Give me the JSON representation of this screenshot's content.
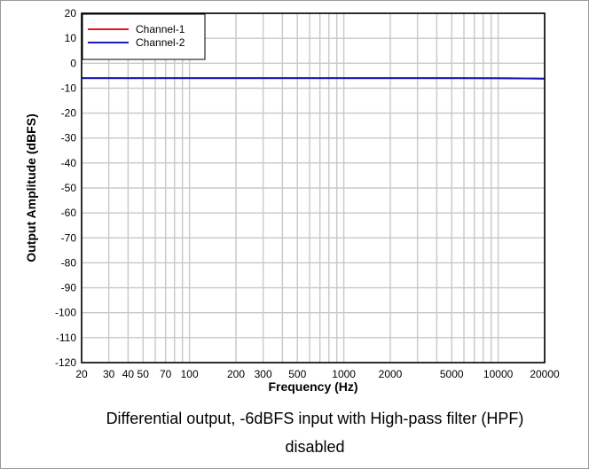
{
  "chart_data": {
    "type": "line",
    "xlabel": "Frequency (Hz)",
    "ylabel": "Output Amplitude (dBFS)",
    "x_scale": "log",
    "xlim": [
      20,
      20000
    ],
    "ylim": [
      -120,
      20
    ],
    "x_ticks": [
      20,
      30,
      40,
      50,
      70,
      100,
      200,
      300,
      500,
      1000,
      2000,
      5000,
      10000,
      20000
    ],
    "x_tick_labels": [
      "20",
      "30",
      "40",
      "50",
      "70",
      "100",
      "200",
      "300",
      "500",
      "1000",
      "2000",
      "5000",
      "10000",
      "20000"
    ],
    "y_ticks": [
      20,
      10,
      0,
      -10,
      -20,
      -30,
      -40,
      -50,
      -60,
      -70,
      -80,
      -90,
      -100,
      -110,
      -120
    ],
    "y_tick_labels": [
      "20",
      "10",
      "0",
      "-10",
      "-20",
      "-30",
      "-40",
      "-50",
      "-60",
      "-70",
      "-80",
      "-90",
      "-100",
      "-110",
      "-120"
    ],
    "grid": true,
    "legend_position": "top-left",
    "series": [
      {
        "name": "Channel-1",
        "color": "#e8141e",
        "x": [
          20,
          50,
          100,
          200,
          500,
          1000,
          2000,
          5000,
          10000,
          15000,
          18000,
          20000
        ],
        "y": [
          -6.0,
          -6.0,
          -6.0,
          -6.0,
          -6.0,
          -6.0,
          -6.0,
          -6.0,
          -6.05,
          -6.1,
          -6.15,
          -6.2
        ]
      },
      {
        "name": "Channel-2",
        "color": "#1c1cb8",
        "x": [
          20,
          50,
          100,
          200,
          500,
          1000,
          2000,
          5000,
          10000,
          15000,
          18000,
          20000
        ],
        "y": [
          -6.0,
          -6.0,
          -6.0,
          -6.0,
          -6.0,
          -6.0,
          -6.0,
          -6.0,
          -6.05,
          -6.1,
          -6.15,
          -6.2
        ]
      }
    ]
  },
  "caption": {
    "line1": "Differential output, -6dBFS input with High-pass filter (HPF)",
    "line2": "disabled"
  }
}
